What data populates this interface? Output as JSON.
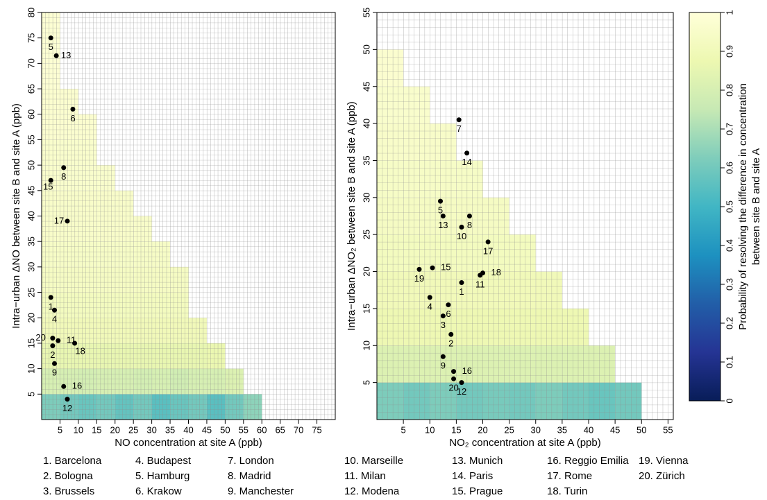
{
  "chart_data": [
    {
      "type": "heatmap",
      "xlabel": "NO concentration at site A (ppb)",
      "ylabel": "Intra−urban ΔNO between site B and site A (ppb)",
      "xlim": [
        0,
        80
      ],
      "ylim": [
        0,
        80
      ],
      "xticks": [
        5,
        10,
        15,
        20,
        25,
        30,
        35,
        40,
        45,
        50,
        55,
        60,
        65,
        70,
        75
      ],
      "yticks": [
        5,
        10,
        15,
        20,
        25,
        30,
        35,
        40,
        45,
        50,
        55,
        60,
        65,
        70,
        75,
        80
      ],
      "x_edges": [
        0,
        5,
        10,
        15,
        20,
        25,
        30,
        35,
        40,
        45,
        50,
        55,
        60,
        65,
        70,
        75,
        80
      ],
      "y_edges": [
        0,
        5,
        10,
        15,
        20,
        25,
        30,
        35,
        40,
        45,
        50,
        55,
        60,
        65,
        70,
        75,
        80
      ],
      "cells": [
        [
          0.62,
          0.6,
          0.58,
          0.6,
          0.57,
          0.6,
          0.55,
          0.58,
          0.6,
          0.55,
          0.6,
          0.65,
          null,
          null,
          null,
          null
        ],
        [
          0.8,
          0.8,
          0.79,
          0.8,
          0.8,
          0.79,
          0.8,
          0.78,
          0.8,
          0.8,
          0.82,
          null,
          null,
          null,
          null,
          null
        ],
        [
          0.86,
          0.86,
          0.86,
          0.86,
          0.86,
          0.86,
          0.86,
          0.86,
          0.86,
          0.87,
          null,
          null,
          null,
          null,
          null,
          null
        ],
        [
          0.9,
          0.9,
          0.9,
          0.9,
          0.9,
          0.9,
          0.9,
          0.9,
          0.9,
          null,
          null,
          null,
          null,
          null,
          null,
          null
        ],
        [
          0.92,
          0.92,
          0.92,
          0.92,
          0.92,
          0.92,
          0.92,
          0.92,
          null,
          null,
          null,
          null,
          null,
          null,
          null,
          null
        ],
        [
          0.93,
          0.93,
          0.93,
          0.93,
          0.93,
          0.93,
          0.93,
          0.93,
          null,
          null,
          null,
          null,
          null,
          null,
          null,
          null
        ],
        [
          0.94,
          0.94,
          0.94,
          0.94,
          0.94,
          0.94,
          0.94,
          null,
          null,
          null,
          null,
          null,
          null,
          null,
          null,
          null
        ],
        [
          0.95,
          0.95,
          0.95,
          0.95,
          0.95,
          0.95,
          null,
          null,
          null,
          null,
          null,
          null,
          null,
          null,
          null,
          null
        ],
        [
          0.95,
          0.95,
          0.95,
          0.95,
          0.95,
          null,
          null,
          null,
          null,
          null,
          null,
          null,
          null,
          null,
          null,
          null
        ],
        [
          0.96,
          0.96,
          0.96,
          0.96,
          null,
          null,
          null,
          null,
          null,
          null,
          null,
          null,
          null,
          null,
          null,
          null
        ],
        [
          0.96,
          0.96,
          0.96,
          null,
          null,
          null,
          null,
          null,
          null,
          null,
          null,
          null,
          null,
          null,
          null,
          null
        ],
        [
          0.97,
          0.97,
          0.97,
          null,
          null,
          null,
          null,
          null,
          null,
          null,
          null,
          null,
          null,
          null,
          null,
          null
        ],
        [
          0.97,
          0.97,
          null,
          null,
          null,
          null,
          null,
          null,
          null,
          null,
          null,
          null,
          null,
          null,
          null,
          null
        ],
        [
          0.98,
          null,
          null,
          null,
          null,
          null,
          null,
          null,
          null,
          null,
          null,
          null,
          null,
          null,
          null,
          null
        ],
        [
          0.98,
          null,
          null,
          null,
          null,
          null,
          null,
          null,
          null,
          null,
          null,
          null,
          null,
          null,
          null,
          null
        ],
        [
          0.98,
          null,
          null,
          null,
          null,
          null,
          null,
          null,
          null,
          null,
          null,
          null,
          null,
          null,
          null,
          null
        ]
      ],
      "points": {
        "labels": [
          "5",
          "13",
          "6",
          "8",
          "15",
          "17",
          "1",
          "4",
          "20",
          "11",
          "18",
          "2",
          "9",
          "16",
          "12"
        ],
        "x": [
          2.5,
          4,
          8.5,
          6,
          2.5,
          7,
          2.5,
          3.5,
          3,
          4.5,
          9,
          3,
          3.5,
          6,
          7
        ],
        "y": [
          75,
          71.5,
          61,
          49.5,
          47,
          39,
          24,
          21.5,
          16,
          15.5,
          15,
          14.5,
          11,
          6.5,
          4
        ]
      }
    },
    {
      "type": "heatmap",
      "xlabel": "NO₂ concentration at site A (ppb)",
      "ylabel": "Intra−urban ΔNO₂ between site B and site A (ppb)",
      "xlim": [
        0,
        56
      ],
      "ylim": [
        0,
        55
      ],
      "xticks": [
        5,
        10,
        15,
        20,
        25,
        30,
        35,
        40,
        45,
        50,
        55
      ],
      "yticks": [
        5,
        10,
        15,
        20,
        25,
        30,
        35,
        40,
        45,
        50,
        55
      ],
      "x_edges": [
        0,
        5,
        10,
        15,
        20,
        25,
        30,
        35,
        40,
        45,
        50,
        55
      ],
      "y_edges": [
        0,
        5,
        10,
        15,
        20,
        25,
        30,
        35,
        40,
        45,
        50,
        55
      ],
      "cells": [
        [
          0.62,
          0.6,
          0.62,
          0.6,
          0.61,
          0.6,
          0.62,
          0.6,
          0.58,
          0.6,
          null
        ],
        [
          0.82,
          0.82,
          0.82,
          0.82,
          0.82,
          0.82,
          0.82,
          0.82,
          0.82,
          null,
          null
        ],
        [
          0.88,
          0.88,
          0.88,
          0.88,
          0.88,
          0.88,
          0.88,
          0.88,
          null,
          null,
          null
        ],
        [
          0.9,
          0.9,
          0.9,
          0.9,
          0.9,
          0.9,
          0.9,
          null,
          null,
          null,
          null
        ],
        [
          0.92,
          0.92,
          0.92,
          0.92,
          0.92,
          0.92,
          null,
          null,
          null,
          null,
          null
        ],
        [
          0.93,
          0.93,
          0.93,
          0.93,
          0.93,
          null,
          null,
          null,
          null,
          null,
          null
        ],
        [
          0.94,
          0.94,
          0.94,
          0.94,
          null,
          null,
          null,
          null,
          null,
          null,
          null
        ],
        [
          0.95,
          0.95,
          0.95,
          null,
          null,
          null,
          null,
          null,
          null,
          null,
          null
        ],
        [
          0.96,
          0.96,
          null,
          null,
          null,
          null,
          null,
          null,
          null,
          null,
          null
        ],
        [
          0.97,
          null,
          null,
          null,
          null,
          null,
          null,
          null,
          null,
          null,
          null
        ],
        [
          null,
          null,
          null,
          null,
          null,
          null,
          null,
          null,
          null,
          null,
          null
        ]
      ],
      "points": {
        "labels": [
          "7",
          "14",
          "5",
          "13",
          "8",
          "10",
          "17",
          "19",
          "15",
          "18",
          "11",
          "1",
          "4",
          "6",
          "3",
          "2",
          "9",
          "16",
          "20",
          "12"
        ],
        "x": [
          15.5,
          17,
          12,
          12.5,
          17.5,
          16,
          21,
          8,
          10.5,
          20,
          19.5,
          16,
          10,
          13.5,
          12.5,
          14,
          12.5,
          14.5,
          14.5,
          16
        ],
        "y": [
          40.5,
          36,
          29.5,
          27.5,
          27.5,
          26,
          24,
          20.3,
          20.5,
          19.8,
          19.5,
          18.5,
          16.5,
          15.5,
          14,
          11.5,
          8.5,
          6.5,
          5.5,
          5
        ]
      }
    }
  ],
  "colorbar": {
    "lim": [
      0,
      1
    ],
    "ticks": [
      0,
      0.1,
      0.2,
      0.3,
      0.4,
      0.5,
      0.6,
      0.7,
      0.8,
      0.9,
      1
    ],
    "label": [
      "Probability of resolving the difference in concentration",
      "between site B and site A"
    ],
    "stops": [
      0,
      0.125,
      0.25,
      0.375,
      0.5,
      0.625,
      0.75,
      0.875,
      1
    ],
    "colors": [
      "#081d58",
      "#253494",
      "#225ea8",
      "#1d91c0",
      "#41b6c4",
      "#7fcdbb",
      "#c7e9b4",
      "#edf8b1",
      "#ffffd9"
    ]
  },
  "legend": [
    "1. Barcelona",
    "2. Bologna",
    "3. Brussels",
    "4. Budapest",
    "5. Hamburg",
    "6. Krakow",
    "7. London",
    "8. Madrid",
    "9. Manchester",
    "10. Marseille",
    "11. Milan",
    "12. Modena",
    "13. Munich",
    "14. Paris",
    "15. Prague",
    "16. Reggio Emilia",
    "17. Rome",
    "18. Turin",
    "19. Vienna",
    "20. Zürich"
  ]
}
